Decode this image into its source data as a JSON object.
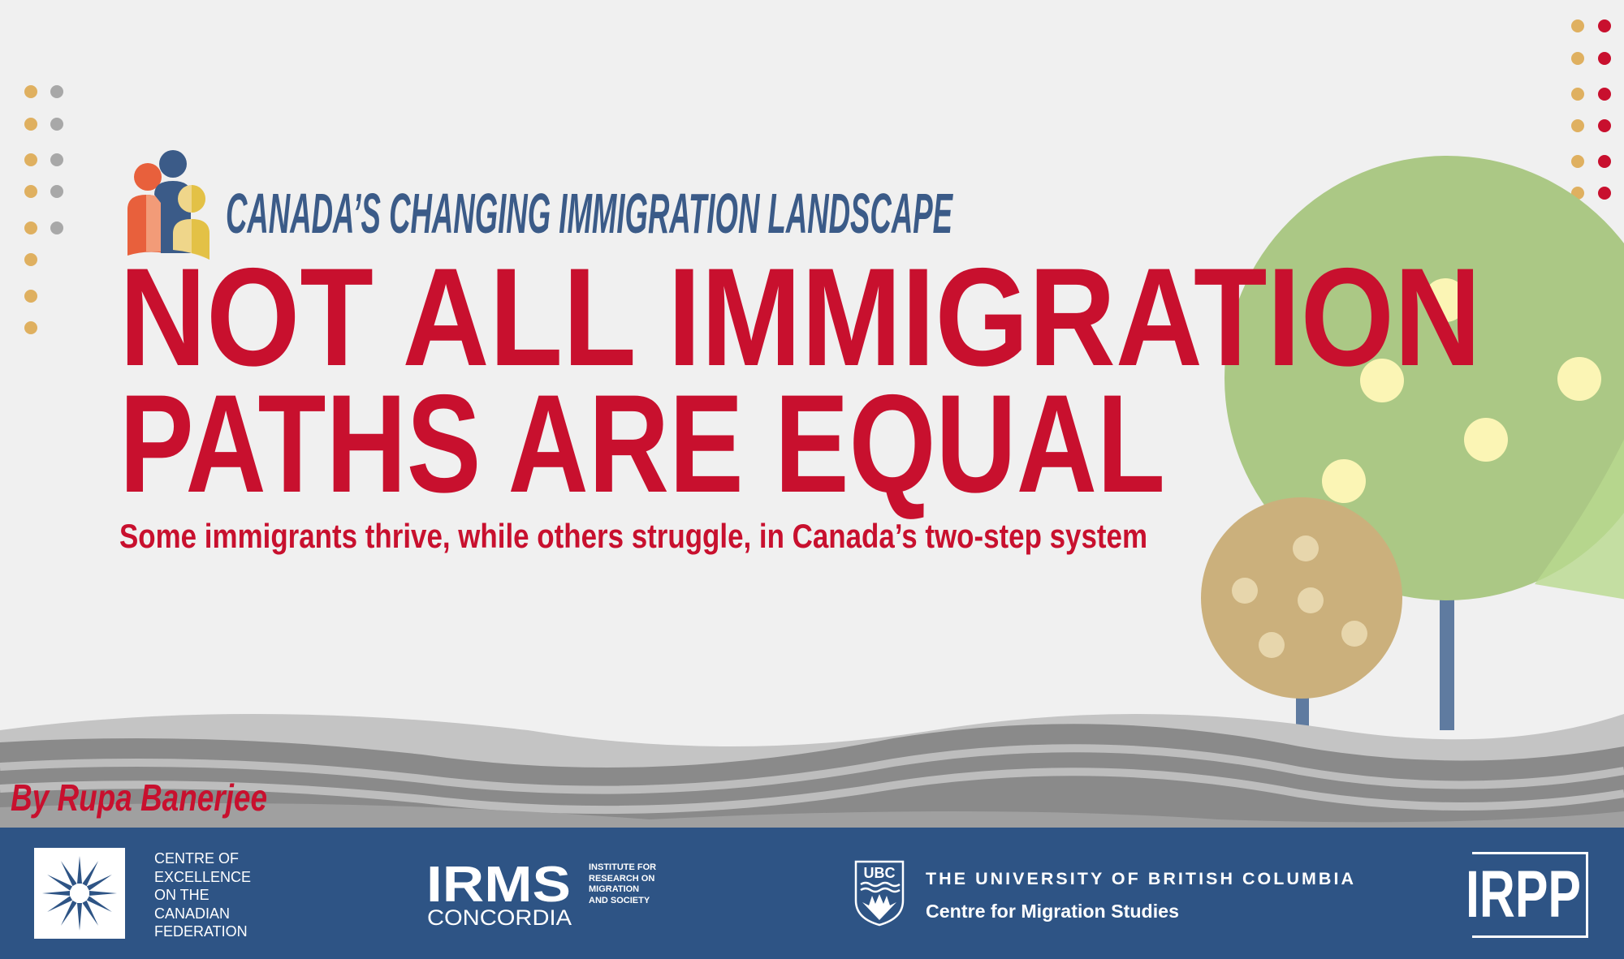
{
  "header": {
    "series_title": "CANADA’S CHANGING IMMIGRATION LANDSCAPE",
    "headline_line1": "NOT ALL IMMIGRATION",
    "headline_line2": "PATHS ARE EQUAL",
    "tagline": "Some immigrants thrive, while others struggle, in Canada’s two-step system",
    "byline": "By Rupa Banerjee"
  },
  "colors": {
    "background": "#f0f0f0",
    "headline_red": "#c8102e",
    "navy": "#3b5b88",
    "footer_blue": "#2e5485",
    "dot_gold": "#dfb060",
    "dot_gray": "#a8a8a8",
    "tree_green": "#abc885",
    "tree_tan": "#cbb07c"
  },
  "footer": {
    "partners": [
      {
        "name": "Centre of Excellence on the Canadian Federation",
        "lines": [
          "CENTRE OF",
          "EXCELLENCE",
          "ON THE",
          "CANADIAN",
          "FEDERATION"
        ],
        "icon": "snowflake-logo"
      },
      {
        "name": "IRMS Concordia",
        "big": "IRMS",
        "sub": "CONCORDIA",
        "lines": [
          "INSTITUTE FOR",
          "RESEARCH ON",
          "MIGRATION",
          "AND SOCIETY"
        ]
      },
      {
        "name": "UBC Centre for Migration Studies",
        "crest": "UBC",
        "line1": "THE UNIVERSITY OF BRITISH COLUMBIA",
        "line2": "Centre for Migration Studies"
      },
      {
        "name": "IRPP",
        "logo_text": "IRPP"
      }
    ]
  }
}
